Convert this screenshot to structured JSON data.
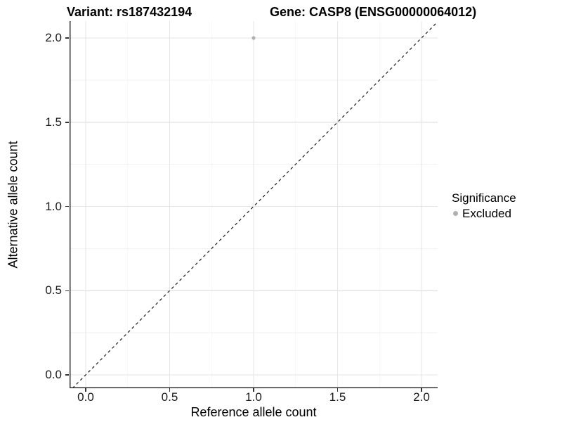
{
  "chart_data": {
    "type": "scatter",
    "title_parts": {
      "variant": "Variant: rs187432194",
      "gene": "Gene: CASP8 (ENSG00000064012)"
    },
    "xlabel": "Reference allele count",
    "ylabel": "Alternative allele count",
    "xlim": [
      -0.1,
      2.1
    ],
    "ylim": [
      -0.08,
      2.1
    ],
    "x_ticks": {
      "values": [
        0,
        0.5,
        1,
        1.5,
        2
      ],
      "labels": [
        "0.0",
        "0.5",
        "1.0",
        "1.5",
        "2.0"
      ]
    },
    "y_ticks": {
      "values": [
        0,
        0.5,
        1,
        1.5,
        2
      ],
      "labels": [
        "0.0",
        "0.5",
        "1.0",
        "1.5",
        "2.0"
      ]
    },
    "x_minor_ticks": [
      0.25,
      0.75,
      1.25,
      1.75
    ],
    "y_minor_ticks": [
      0.25,
      0.75,
      1.25,
      1.75
    ],
    "grid": "major+minor",
    "points": [
      {
        "x": 1.0,
        "y": 2.0,
        "series": "Excluded"
      }
    ],
    "reference_line": {
      "style": "dashed",
      "slope": 1,
      "intercept": 0
    },
    "legend": {
      "title": "Significance",
      "position": "right",
      "items": [
        {
          "label": "Excluded",
          "color": "#b0b0b0",
          "marker": "circle"
        }
      ]
    },
    "colors": {
      "point": "#b0b0b0",
      "grid_major": "#e5e5e5",
      "grid_minor": "#f2f2f2",
      "axis_line": "#333333",
      "reference_line": "#1a1a1a",
      "background": "#ffffff"
    }
  }
}
